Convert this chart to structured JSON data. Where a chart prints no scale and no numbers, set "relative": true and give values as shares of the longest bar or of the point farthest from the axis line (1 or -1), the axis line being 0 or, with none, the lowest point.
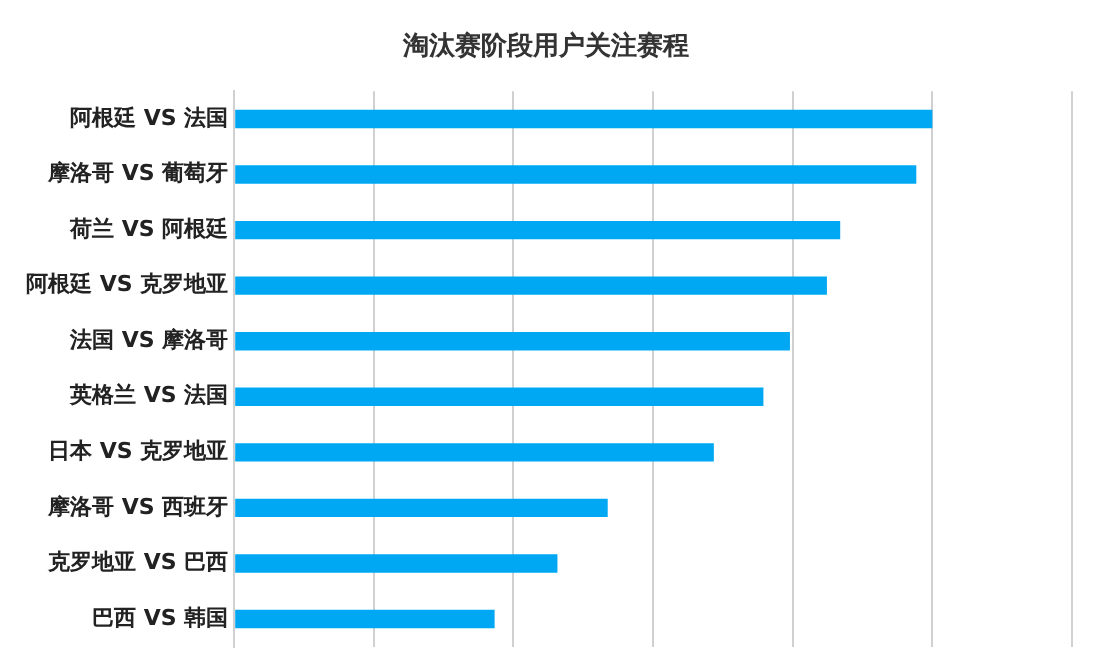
{
  "chart_data": {
    "type": "bar",
    "orientation": "horizontal",
    "relative": true,
    "title": "淘汰赛阶段用户关注赛程",
    "categories": [
      "阿根廷 VS 法国",
      "摩洛哥 VS 葡萄牙",
      "荷兰 VS 阿根廷",
      "阿根廷 VS 克罗地亚",
      "法国 VS 摩洛哥",
      "英格兰 VS 法国",
      "日本 VS 克罗地亚",
      "摩洛哥 VS 西班牙",
      "克罗地亚 VS 巴西",
      "巴西 VS 韩国"
    ],
    "values": [
      1,
      0.977,
      0.868,
      0.849,
      0.796,
      0.758,
      0.687,
      0.535,
      0.463,
      0.373
    ],
    "color": "#00a8f4",
    "grid": "x",
    "legend": false
  }
}
